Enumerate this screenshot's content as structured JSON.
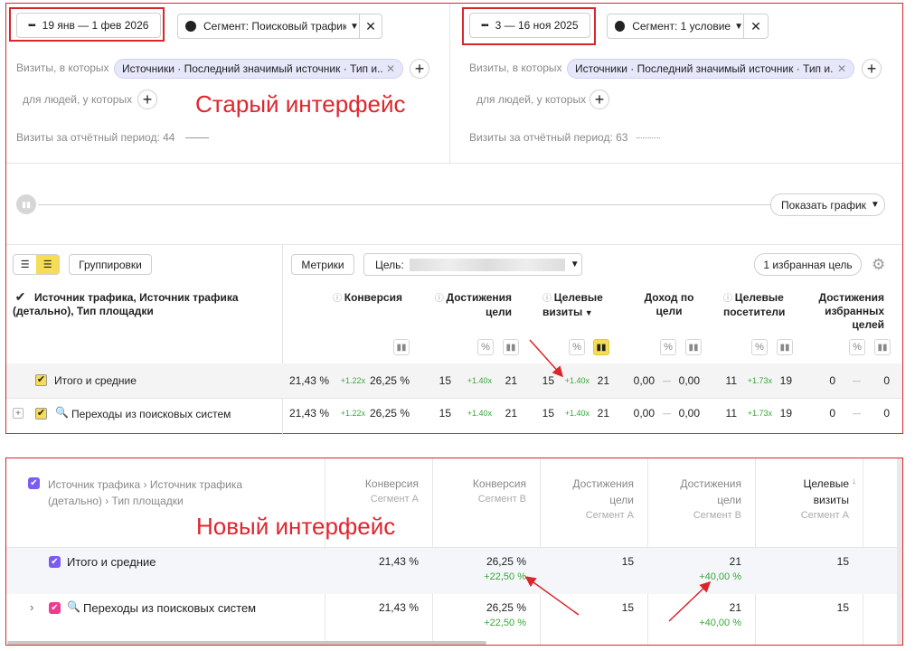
{
  "old": {
    "left": {
      "date": "19 янв — 1 фев 2026",
      "segment": "Сегмент: Поисковый трафик",
      "visits_label": "Визиты, в которых",
      "chip": "Источники · Последний значимый источник · Тип и...",
      "people_label": "для людей, у которых",
      "period": "Визиты за отчётный период: 44"
    },
    "right": {
      "date": "3 — 16 ноя 2025",
      "segment": "Сегмент: 1 условие",
      "visits_label": "Визиты, в которых",
      "chip": "Источники · Последний значимый источник · Тип и...",
      "people_label": "для людей, у которых",
      "period": "Визиты за отчётный период: 63"
    },
    "annotation": "Старый интерфейс",
    "show_chart": "Показать график",
    "groupings": "Группировки",
    "metrics": "Метрики",
    "goal_label": "Цель:",
    "fav_goal": "1 избранная цель",
    "dimension_header": "Источник трафика, Источник трафика (детально), Тип площадки",
    "columns": [
      "Конверсия",
      "Достижения цели",
      "Целевые визиты",
      "Доход по цели",
      "Целевые посетители",
      "Достижения избранных целей"
    ],
    "rows": [
      {
        "label": "Итого и средние",
        "vals": [
          "21,43 %",
          "+1.22x",
          "26,25 %",
          "15",
          "+1.40x",
          "21",
          "15",
          "+1.40x",
          "21",
          "0,00",
          "—",
          "0,00",
          "11",
          "+1.73x",
          "19",
          "0",
          "—",
          "0"
        ]
      },
      {
        "label": "Переходы из поисковых систем",
        "vals": [
          "21,43 %",
          "+1.22x",
          "26,25 %",
          "15",
          "+1.40x",
          "21",
          "15",
          "+1.40x",
          "21",
          "0,00",
          "—",
          "0,00",
          "11",
          "+1.73x",
          "19",
          "0",
          "—",
          "0"
        ]
      }
    ]
  },
  "new": {
    "dimension_header": "Источник трафика › Источник трафика (детально) › Тип площадки",
    "annotation": "Новый интерфейс",
    "columns": [
      {
        "title": "Конверсия",
        "sub": "Сегмент А"
      },
      {
        "title": "Конверсия",
        "sub": "Сегмент В"
      },
      {
        "title": "Достижения цели",
        "sub": "Сегмент А"
      },
      {
        "title": "Достижения цели",
        "sub": "Сегмент В"
      },
      {
        "title": "Целевые визиты",
        "sub": "Сегмент А"
      }
    ],
    "rows": [
      {
        "label": "Итого и средние",
        "vals": [
          "21,43 %",
          "26,25 %",
          "15",
          "21",
          "15"
        ],
        "deltas": [
          "",
          "+22,50 %",
          "",
          "+40,00 %",
          ""
        ]
      },
      {
        "label": "Переходы из поисковых систем",
        "vals": [
          "21,43 %",
          "26,25 %",
          "15",
          "21",
          "15"
        ],
        "deltas": [
          "",
          "+22,50 %",
          "",
          "+40,00 %",
          ""
        ]
      }
    ]
  },
  "colors": {
    "frame": "#d9262a",
    "annotation": "#e0252d",
    "chip_bg": "#e6e7fb",
    "checkbox_old": "#f7dd55",
    "checkbox_new": "#7b5cf0",
    "checkbox_pink": "#f0398f",
    "positive": "#3aa83a"
  }
}
